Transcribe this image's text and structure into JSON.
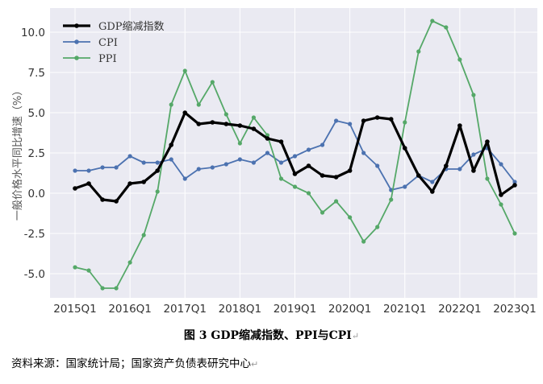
{
  "caption": "图 3 GDP缩减指数、PPI与CPI",
  "caption_mark": "↵",
  "source": "资料来源：国家统计局；国家资产负债表研究中心",
  "source_mark": "↵",
  "chart_data": {
    "type": "line",
    "title": "",
    "xlabel": "",
    "ylabel": "一般价格水平同比增速（%）",
    "ylim": [
      -6.5,
      11.5
    ],
    "yticks": [
      -5.0,
      -2.5,
      0.0,
      2.5,
      5.0,
      7.5,
      10.0
    ],
    "ytick_labels": [
      "-5.0",
      "-2.5",
      "0.0",
      "2.5",
      "5.0",
      "7.5",
      "10.0"
    ],
    "x": [
      "2015Q1",
      "2015Q2",
      "2015Q3",
      "2015Q4",
      "2016Q1",
      "2016Q2",
      "2016Q3",
      "2016Q4",
      "2017Q1",
      "2017Q2",
      "2017Q3",
      "2017Q4",
      "2018Q1",
      "2018Q2",
      "2018Q3",
      "2018Q4",
      "2019Q1",
      "2019Q2",
      "2019Q3",
      "2019Q4",
      "2020Q1",
      "2020Q2",
      "2020Q3",
      "2020Q4",
      "2021Q1",
      "2021Q2",
      "2021Q3",
      "2021Q4",
      "2022Q1",
      "2022Q2",
      "2022Q3",
      "2022Q4",
      "2023Q1"
    ],
    "xticks": [
      "2015Q1",
      "2016Q1",
      "2017Q1",
      "2018Q1",
      "2019Q1",
      "2020Q1",
      "2021Q1",
      "2022Q1",
      "2023Q1"
    ],
    "grid": true,
    "background": "#eaeaf2",
    "legend_position": "top-left",
    "series": [
      {
        "name": "GDP缩减指数",
        "color": "#000000",
        "width": 3.2,
        "values": [
          0.3,
          0.6,
          -0.4,
          -0.5,
          0.6,
          0.7,
          1.4,
          3.0,
          5.0,
          4.3,
          4.4,
          4.3,
          4.2,
          4.0,
          3.4,
          3.2,
          1.2,
          1.7,
          1.1,
          1.0,
          1.4,
          4.5,
          4.7,
          4.6,
          2.8,
          1.1,
          0.1,
          1.7,
          4.2,
          1.4,
          3.2,
          -0.1,
          0.5
        ]
      },
      {
        "name": "CPI",
        "color": "#4c72b0",
        "width": 1.8,
        "values": [
          1.4,
          1.4,
          1.6,
          1.6,
          2.3,
          1.9,
          1.9,
          2.1,
          0.9,
          1.5,
          1.6,
          1.8,
          2.1,
          1.9,
          2.5,
          1.9,
          2.3,
          2.7,
          3.0,
          4.5,
          4.3,
          2.5,
          1.7,
          0.2,
          0.4,
          1.1,
          0.7,
          1.5,
          1.5,
          2.4,
          2.8,
          1.8,
          0.7
        ]
      },
      {
        "name": "PPI",
        "color": "#55a868",
        "width": 1.8,
        "values": [
          -4.6,
          -4.8,
          -5.9,
          -5.9,
          -4.3,
          -2.6,
          0.1,
          5.5,
          7.6,
          5.5,
          6.9,
          4.9,
          3.1,
          4.7,
          3.6,
          0.9,
          0.4,
          0.0,
          -1.2,
          -0.5,
          -1.5,
          -3.0,
          -2.1,
          -0.4,
          4.4,
          8.8,
          10.7,
          10.3,
          8.3,
          6.1,
          0.9,
          -0.7,
          -2.5
        ]
      }
    ]
  }
}
